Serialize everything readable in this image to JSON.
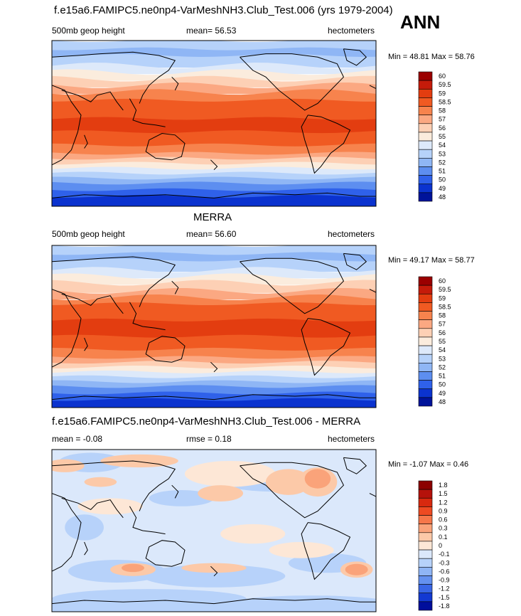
{
  "page": {
    "season": "ANN"
  },
  "panels": [
    {
      "title": "f.e15a6.FAMIPC5.ne0np4-VarMeshNH3.Club_Test.006 (yrs 1979-2004)",
      "left_label": "500mb geop height",
      "center_label": "mean=  56.53",
      "right_label": "hectometers",
      "minmax": "Min =  48.81 Max =  58.76",
      "kind": "field",
      "colorbar": {
        "labels": [
          "60",
          "59.5",
          "59",
          "58.5",
          "58",
          "57",
          "56",
          "55",
          "54",
          "53",
          "52",
          "51",
          "50",
          "49",
          "48"
        ],
        "colors": [
          "#9b0000",
          "#c51b0a",
          "#e33d10",
          "#f05a22",
          "#f7834d",
          "#fba882",
          "#fdd0b5",
          "#fbecdd",
          "#dde9fa",
          "#b6d2fa",
          "#8fb6f5",
          "#5d8ef0",
          "#2f61ea",
          "#0b33cf",
          "#00139a"
        ]
      }
    },
    {
      "title": "MERRA",
      "left_label": "500mb geop height",
      "center_label": "mean=  56.60",
      "right_label": "hectometers",
      "minmax": "Min =  49.17 Max =  58.77",
      "kind": "field",
      "colorbar": {
        "labels": [
          "60",
          "59.5",
          "59",
          "58.5",
          "58",
          "57",
          "56",
          "55",
          "54",
          "53",
          "52",
          "51",
          "50",
          "49",
          "48"
        ],
        "colors": [
          "#9b0000",
          "#c51b0a",
          "#e33d10",
          "#f05a22",
          "#f7834d",
          "#fba882",
          "#fdd0b5",
          "#fbecdd",
          "#dde9fa",
          "#b6d2fa",
          "#8fb6f5",
          "#5d8ef0",
          "#2f61ea",
          "#0b33cf",
          "#00139a"
        ]
      }
    },
    {
      "title": "f.e15a6.FAMIPC5.ne0np4-VarMeshNH3.Club_Test.006 - MERRA",
      "left_label": "mean =  -0.08",
      "center_label": "rmse =   0.18",
      "right_label": "hectometers",
      "minmax": "Min =  -1.07 Max =   0.46",
      "kind": "diff",
      "colorbar": {
        "labels": [
          "1.8",
          "1.5",
          "1.2",
          "0.9",
          "0.6",
          "0.3",
          "0.1",
          "0",
          "-0.1",
          "-0.3",
          "-0.6",
          "-0.9",
          "-1.2",
          "-1.5",
          "-1.8"
        ],
        "colors": [
          "#8c0000",
          "#b5120b",
          "#d8290f",
          "#ee4a22",
          "#f6774a",
          "#faa37a",
          "#fcc9a8",
          "#fde7d6",
          "#dbe8fb",
          "#b7d2fa",
          "#8fb5f5",
          "#6491ef",
          "#3966e6",
          "#1339d2",
          "#000e9c"
        ]
      }
    }
  ],
  "chart_data": [
    {
      "type": "heatmap",
      "title": "f.e15a6.FAMIPC5.ne0np4-VarMeshNH3.Club_Test.006 (yrs 1979-2004)",
      "variable": "500mb geop height",
      "units": "hectometers",
      "mean": 56.53,
      "min": 48.81,
      "max": 58.76,
      "colorbar_levels": [
        48,
        49,
        50,
        51,
        52,
        53,
        54,
        55,
        56,
        57,
        58,
        58.5,
        59,
        59.5,
        60
      ]
    },
    {
      "type": "heatmap",
      "title": "MERRA",
      "variable": "500mb geop height",
      "units": "hectometers",
      "mean": 56.6,
      "min": 49.17,
      "max": 58.77,
      "colorbar_levels": [
        48,
        49,
        50,
        51,
        52,
        53,
        54,
        55,
        56,
        57,
        58,
        58.5,
        59,
        59.5,
        60
      ]
    },
    {
      "type": "heatmap",
      "title": "f.e15a6.FAMIPC5.ne0np4-VarMeshNH3.Club_Test.006 - MERRA",
      "units": "hectometers",
      "mean": -0.08,
      "rmse": 0.18,
      "min": -1.07,
      "max": 0.46,
      "colorbar_levels": [
        -1.8,
        -1.5,
        -1.2,
        -0.9,
        -0.6,
        -0.3,
        -0.1,
        0,
        0.1,
        0.3,
        0.6,
        0.9,
        1.2,
        1.5,
        1.8
      ]
    }
  ]
}
